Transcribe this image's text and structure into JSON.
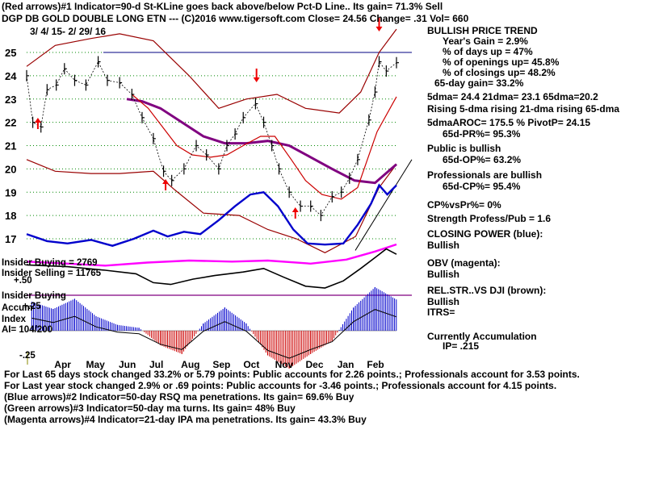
{
  "header": {
    "line1": "(Red arrows)#1 Indicator=90-d St-KLine goes back above/below Pct-D Line.. Its gain= 71.3% Sell",
    "line2": "DGP DB GOLD DOUBLE LONG ETN  ---  (C)2016 www.tigersoft.com        Close=  24.56  Change= .31 Vol= 660",
    "date_range": "3/ 4/ 15- 2/ 29/ 16"
  },
  "stats": {
    "trend": "BULLISH PRICE TREND",
    "years_gain": "Year's Gain = 2.9%",
    "pct_days_up": "% of days up = 47%",
    "pct_openings_up": "% of openings up= 45.8%",
    "pct_closings_up": "% of closings up= 48.2%",
    "gain_65d": "65-day gain= 33.2%",
    "dma": "5dma= 24.4  21dma= 23.1  65dma=20.2",
    "rising": "Rising 5-dma  rising 21-dma  rising 65-dma",
    "aroc": "5dmaAROC= 175.5  %  PivotP= 24.15",
    "pr": "65d-PR%= 95.3%",
    "public": "Public is bullish",
    "op": "65d-OP%= 63.2%",
    "pros": "Professionals are bullish",
    "cp": "65d-CP%= 95.4%",
    "cpvspr": "CP%vsPr%=  0%",
    "strength": "Strength Profess/Pub = 1.6",
    "closing_power": "CLOSING POWER (blue):",
    "cp_bullish": "Bullish",
    "obv": "OBV (magenta):",
    "obv_bullish": "Bullish",
    "relstr": "REL.STR..VS DJI (brown):",
    "relstr_bullish": "Bullish",
    "itrs": "ITRS=",
    "accum_title": "Currently Accumulation",
    "ip": "IP=  .215"
  },
  "insider": {
    "buying": "Insider Buying = 2769",
    "selling": "Insider Selling = 11765",
    "val": "+.50",
    "buying2": "Insider Buying"
  },
  "accum": {
    "plus25": "+.25",
    "label": "Accum",
    "index": "Index",
    "ai": "AI= 104/200",
    "minus25": "-.25"
  },
  "footer": {
    "line1": "For Last 65 days stock changed  33.2% or  5.79 points:  Public accounts for  2.26 points.;  Professionals account for  3.53 points.",
    "line2": "For Last year stock changed  2.9% or  .69 points:  Public accounts for -3.46 points.;  Professionals account for  4.15 points.",
    "line3": "(Blue arrows)#2 Indicator=50-day RSQ ma penetrations. Its gain= 69.6% Buy",
    "line4": "(Green arrows)#3 Indicator=50-day ma turns.  Its gain= 48% Buy",
    "line5": "(Magenta arrows)#4 Indicator=21-day IPA ma penetrations.  Its gain= 43.3% Buy"
  },
  "colors": {
    "price": "#000000",
    "band": "#990000",
    "ma65": "#800080",
    "ma21": "#cc0000",
    "closing_power": "#0000cc",
    "obv": "#ff00ff",
    "relstr": "#000000",
    "accum_pos": "#0000cc",
    "accum_neg": "#cc0000",
    "arrow": "#ee0000",
    "grid": "#008800"
  },
  "chart_data": {
    "type": "line",
    "title": "DGP DB GOLD DOUBLE LONG ETN",
    "x_labels": [
      "Apr",
      "May",
      "Jun",
      "Jul",
      "Aug",
      "Sep",
      "Oct",
      "Nov",
      "Dec",
      "Jan",
      "Feb"
    ],
    "ylim": [
      16.3,
      25.9
    ],
    "y_ticks": [
      17,
      18,
      19,
      20,
      21,
      22,
      23,
      24,
      25
    ],
    "grid": true,
    "price_close": [
      [
        "2015-03-04",
        24.0
      ],
      [
        "2015-03-10",
        22.0
      ],
      [
        "2015-03-18",
        21.8
      ],
      [
        "2015-03-24",
        23.4
      ],
      [
        "2015-04-02",
        23.6
      ],
      [
        "2015-04-10",
        24.3
      ],
      [
        "2015-04-20",
        23.8
      ],
      [
        "2015-05-01",
        23.6
      ],
      [
        "2015-05-13",
        24.6
      ],
      [
        "2015-05-22",
        23.8
      ],
      [
        "2015-06-03",
        23.7
      ],
      [
        "2015-06-15",
        23.2
      ],
      [
        "2015-06-25",
        22.2
      ],
      [
        "2015-07-06",
        21.3
      ],
      [
        "2015-07-16",
        19.9
      ],
      [
        "2015-07-24",
        19.5
      ],
      [
        "2015-08-05",
        20.0
      ],
      [
        "2015-08-17",
        21.0
      ],
      [
        "2015-08-27",
        20.6
      ],
      [
        "2015-09-08",
        20.0
      ],
      [
        "2015-09-16",
        21.0
      ],
      [
        "2015-09-24",
        21.5
      ],
      [
        "2015-10-02",
        22.2
      ],
      [
        "2015-10-14",
        22.8
      ],
      [
        "2015-10-22",
        22.0
      ],
      [
        "2015-10-30",
        21.0
      ],
      [
        "2015-11-06",
        20.0
      ],
      [
        "2015-11-16",
        19.0
      ],
      [
        "2015-11-27",
        18.4
      ],
      [
        "2015-12-07",
        18.4
      ],
      [
        "2015-12-17",
        18.0
      ],
      [
        "2015-12-28",
        18.8
      ],
      [
        "2016-01-06",
        19.0
      ],
      [
        "2016-01-14",
        19.6
      ],
      [
        "2016-01-22",
        20.4
      ],
      [
        "2016-02-02",
        22.1
      ],
      [
        "2016-02-08",
        23.3
      ],
      [
        "2016-02-12",
        24.6
      ],
      [
        "2016-02-19",
        24.2
      ],
      [
        "2016-02-29",
        24.56
      ]
    ],
    "upper_band": [
      [
        "2015-03-04",
        24.4
      ],
      [
        "2015-04-01",
        25.3
      ],
      [
        "2015-05-06",
        25.6
      ],
      [
        "2015-06-03",
        25.8
      ],
      [
        "2015-07-06",
        25.5
      ],
      [
        "2015-08-10",
        24.0
      ],
      [
        "2015-09-08",
        22.6
      ],
      [
        "2015-10-05",
        23.0
      ],
      [
        "2015-11-04",
        23.2
      ],
      [
        "2015-12-02",
        22.6
      ],
      [
        "2016-01-04",
        22.4
      ],
      [
        "2016-01-25",
        23.3
      ],
      [
        "2016-02-12",
        25.0
      ],
      [
        "2016-02-29",
        26.0
      ]
    ],
    "lower_band": [
      [
        "2015-03-04",
        20.4
      ],
      [
        "2015-04-01",
        19.9
      ],
      [
        "2015-05-06",
        19.8
      ],
      [
        "2015-06-03",
        19.8
      ],
      [
        "2015-07-06",
        19.9
      ],
      [
        "2015-07-27",
        19.1
      ],
      [
        "2015-08-24",
        18.1
      ],
      [
        "2015-09-28",
        18.0
      ],
      [
        "2015-10-26",
        17.4
      ],
      [
        "2015-11-23",
        17.0
      ],
      [
        "2015-12-21",
        16.4
      ],
      [
        "2016-01-20",
        17.1
      ],
      [
        "2016-02-12",
        19.2
      ],
      [
        "2016-02-29",
        20.2
      ]
    ],
    "ma65": [
      [
        "2015-06-10",
        23.0
      ],
      [
        "2015-06-25",
        22.9
      ],
      [
        "2015-07-13",
        22.6
      ],
      [
        "2015-08-03",
        22.0
      ],
      [
        "2015-08-24",
        21.4
      ],
      [
        "2015-09-14",
        21.1
      ],
      [
        "2015-10-05",
        21.1
      ],
      [
        "2015-10-26",
        21.2
      ],
      [
        "2015-11-16",
        21.0
      ],
      [
        "2015-12-07",
        20.5
      ],
      [
        "2015-12-28",
        20.0
      ],
      [
        "2016-01-19",
        19.5
      ],
      [
        "2016-02-08",
        19.4
      ],
      [
        "2016-02-29",
        20.2
      ]
    ],
    "ma21": [
      [
        "2015-06-15",
        23.2
      ],
      [
        "2015-07-01",
        22.6
      ],
      [
        "2015-07-15",
        21.8
      ],
      [
        "2015-07-29",
        21.0
      ],
      [
        "2015-08-13",
        20.6
      ],
      [
        "2015-08-31",
        20.5
      ],
      [
        "2015-09-16",
        20.6
      ],
      [
        "2015-10-02",
        21.0
      ],
      [
        "2015-10-19",
        21.4
      ],
      [
        "2015-11-02",
        21.4
      ],
      [
        "2015-11-18",
        20.4
      ],
      [
        "2015-12-02",
        19.5
      ],
      [
        "2015-12-18",
        18.9
      ],
      [
        "2016-01-06",
        18.7
      ],
      [
        "2016-01-22",
        19.2
      ],
      [
        "2016-02-10",
        21.6
      ],
      [
        "2016-02-29",
        23.1
      ]
    ],
    "closing_power": [
      [
        "2015-03-04",
        17.2
      ],
      [
        "2015-03-24",
        16.9
      ],
      [
        "2015-04-13",
        16.8
      ],
      [
        "2015-05-06",
        16.95
      ],
      [
        "2015-05-27",
        16.7
      ],
      [
        "2015-06-17",
        17.0
      ],
      [
        "2015-07-06",
        17.35
      ],
      [
        "2015-07-20",
        17.1
      ],
      [
        "2015-08-05",
        17.3
      ],
      [
        "2015-08-21",
        17.2
      ],
      [
        "2015-09-08",
        17.8
      ],
      [
        "2015-09-24",
        18.4
      ],
      [
        "2015-10-09",
        18.9
      ],
      [
        "2015-10-22",
        19.0
      ],
      [
        "2015-11-05",
        18.4
      ],
      [
        "2015-11-20",
        17.4
      ],
      [
        "2015-12-04",
        16.8
      ],
      [
        "2015-12-21",
        16.75
      ],
      [
        "2016-01-08",
        16.8
      ],
      [
        "2016-01-22",
        17.6
      ],
      [
        "2016-02-04",
        18.5
      ],
      [
        "2016-02-12",
        19.3
      ],
      [
        "2016-02-20",
        18.9
      ],
      [
        "2016-02-29",
        19.3
      ]
    ],
    "obv": [
      [
        "2015-03-04",
        16.3
      ],
      [
        "2015-04-13",
        16.2
      ],
      [
        "2015-05-20",
        16.1
      ],
      [
        "2015-06-30",
        16.25
      ],
      [
        "2015-08-10",
        16.35
      ],
      [
        "2015-09-21",
        16.3
      ],
      [
        "2015-10-26",
        16.35
      ],
      [
        "2015-12-07",
        16.2
      ],
      [
        "2016-01-11",
        16.4
      ],
      [
        "2016-02-08",
        16.8
      ],
      [
        "2016-02-29",
        17.15
      ]
    ],
    "relstr": [
      [
        "2015-03-04",
        15.9
      ],
      [
        "2015-04-13",
        15.8
      ],
      [
        "2015-05-20",
        15.6
      ],
      [
        "2015-06-19",
        15.4
      ],
      [
        "2015-07-06",
        14.9
      ],
      [
        "2015-07-23",
        14.8
      ],
      [
        "2015-08-14",
        15.1
      ],
      [
        "2015-09-04",
        15.3
      ],
      [
        "2015-10-02",
        15.5
      ],
      [
        "2015-10-22",
        15.7
      ],
      [
        "2015-11-11",
        15.2
      ],
      [
        "2015-12-02",
        14.7
      ],
      [
        "2015-12-21",
        14.6
      ],
      [
        "2016-01-08",
        15.0
      ],
      [
        "2016-01-25",
        15.7
      ],
      [
        "2016-02-10",
        16.4
      ],
      [
        "2016-02-19",
        16.8
      ],
      [
        "2016-02-29",
        16.5
      ]
    ],
    "accumulation_index": [
      [
        "2015-03-09",
        0.2
      ],
      [
        "2015-03-30",
        0.15
      ],
      [
        "2015-04-20",
        0.22
      ],
      [
        "2015-05-11",
        0.1
      ],
      [
        "2015-06-01",
        0.04
      ],
      [
        "2015-06-22",
        0.02
      ],
      [
        "2015-07-13",
        -0.1
      ],
      [
        "2015-08-03",
        -0.16
      ],
      [
        "2015-08-24",
        0.05
      ],
      [
        "2015-09-14",
        0.16
      ],
      [
        "2015-10-05",
        0.05
      ],
      [
        "2015-10-26",
        -0.17
      ],
      [
        "2015-11-16",
        -0.26
      ],
      [
        "2015-12-07",
        -0.16
      ],
      [
        "2015-12-28",
        -0.07
      ],
      [
        "2016-01-18",
        0.16
      ],
      [
        "2016-02-08",
        0.3
      ],
      [
        "2016-02-29",
        0.215
      ]
    ]
  }
}
